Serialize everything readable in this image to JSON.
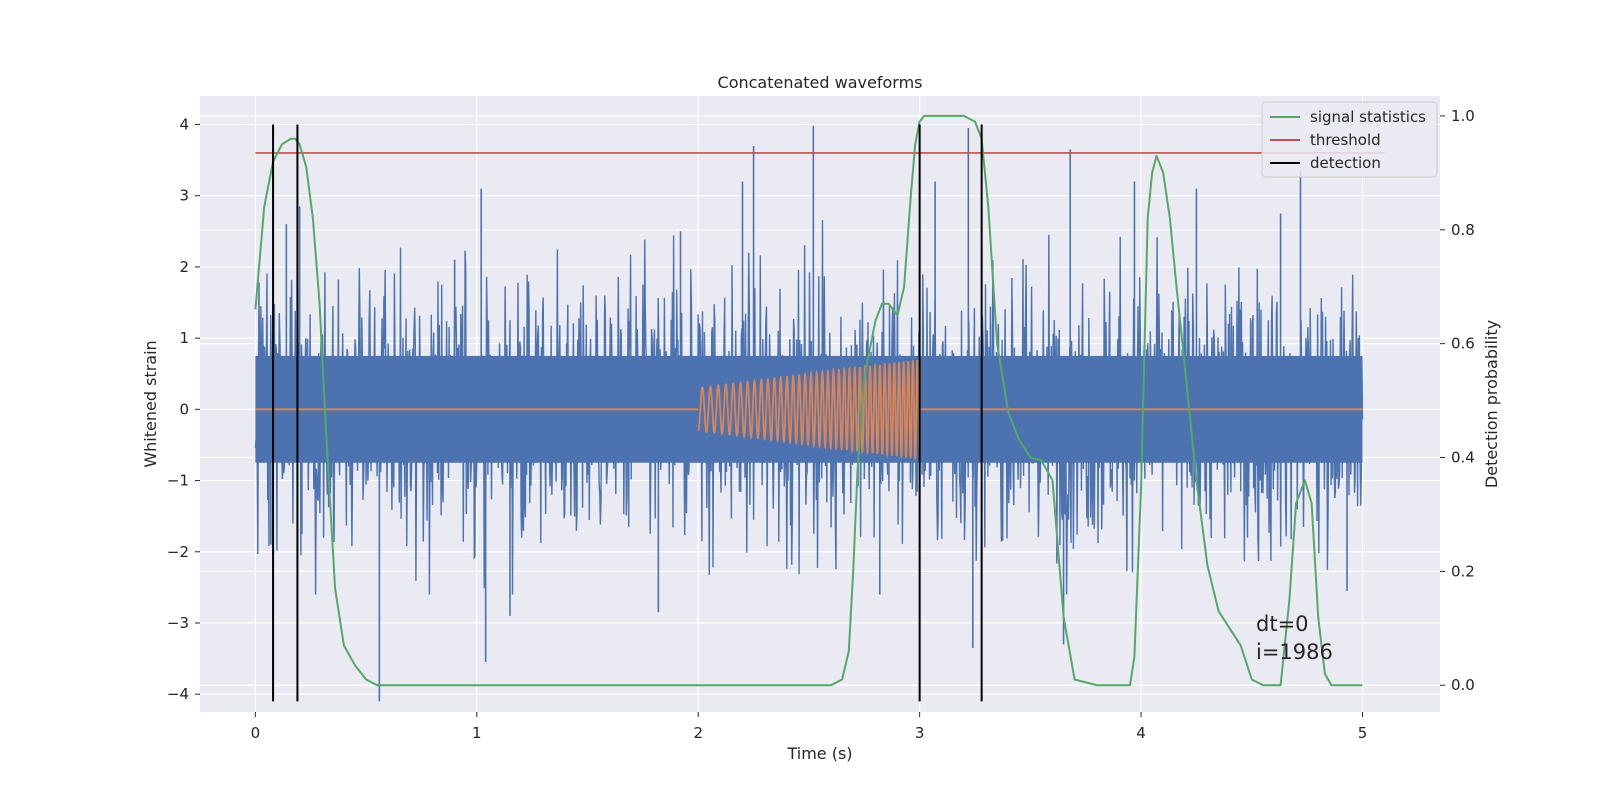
{
  "chart_data": {
    "type": "line",
    "title": "Concatenated waveforms",
    "xlabel": "Time (s)",
    "ylabel": "Whitened strain",
    "y2label": "Detection probability",
    "xlim": [
      -0.25,
      5.35
    ],
    "ylim": [
      -4.25,
      4.4
    ],
    "y2lim": [
      -0.047,
      1.035
    ],
    "xticks": [
      0,
      1,
      2,
      3,
      4,
      5
    ],
    "xtick_labels": [
      "0",
      "1",
      "2",
      "3",
      "4",
      "5"
    ],
    "yticks": [
      4,
      3,
      2,
      1,
      0,
      -1,
      -2,
      -3,
      -4
    ],
    "ytick_labels": [
      "4",
      "3",
      "2",
      "1",
      "0",
      "−1",
      "−2",
      "−3",
      "−4"
    ],
    "y2ticks": [
      1.0,
      0.8,
      0.6,
      0.4,
      0.2,
      0.0
    ],
    "y2tick_labels": [
      "1.0",
      "0.8",
      "0.6",
      "0.4",
      "0.2",
      "0.0"
    ],
    "grid": true,
    "legend_position": "top-right",
    "colors": {
      "background": "#eaeaf2",
      "grid": "#ffffff",
      "strain": "#4c72b0",
      "injection": "#dd8452",
      "statistics": "#55a868",
      "threshold": "#c44e52",
      "detection": "#000000"
    },
    "strain": {
      "x_range": [
        0,
        5
      ],
      "band_y": [
        -0.75,
        0.75
      ],
      "spike_extremes": [
        {
          "x": 0.07,
          "y": -1.9
        },
        {
          "x": 0.14,
          "y": 2.6
        },
        {
          "x": 0.2,
          "y": 2.85
        },
        {
          "x": 0.21,
          "y": -1.75
        },
        {
          "x": 0.56,
          "y": -4.1
        },
        {
          "x": 0.9,
          "y": 2.1
        },
        {
          "x": 1.02,
          "y": 3.1
        },
        {
          "x": 1.04,
          "y": -3.55
        },
        {
          "x": 1.15,
          "y": -2.9
        },
        {
          "x": 1.82,
          "y": -2.85
        },
        {
          "x": 1.92,
          "y": 2.5
        },
        {
          "x": 2.2,
          "y": 3.2
        },
        {
          "x": 2.25,
          "y": 3.7
        },
        {
          "x": 2.52,
          "y": 3.98
        },
        {
          "x": 2.82,
          "y": -2.6
        },
        {
          "x": 3.07,
          "y": 3.2
        },
        {
          "x": 3.22,
          "y": 3.95
        },
        {
          "x": 3.24,
          "y": -3.35
        },
        {
          "x": 3.65,
          "y": -3.3
        },
        {
          "x": 3.68,
          "y": 3.65
        },
        {
          "x": 3.97,
          "y": 3.2
        },
        {
          "x": 4.25,
          "y": 3.1
        },
        {
          "x": 4.63,
          "y": 2.75
        },
        {
          "x": 4.72,
          "y": 3.35
        },
        {
          "x": 4.93,
          "y": -2.55
        }
      ]
    },
    "injection": {
      "x_range": [
        0,
        5
      ],
      "chirp_start": 2.0,
      "chirp_end": 3.0,
      "amplitude_start": 0.3,
      "amplitude_end": 0.7,
      "cycles": 38
    },
    "signal_statistics": {
      "name": "signal statistics",
      "x": [
        0,
        0.04,
        0.08,
        0.12,
        0.16,
        0.18,
        0.2,
        0.23,
        0.26,
        0.29,
        0.32,
        0.36,
        0.4,
        0.45,
        0.5,
        0.55,
        0.6,
        1.0,
        2.0,
        2.6,
        2.65,
        2.68,
        2.7,
        2.72,
        2.75,
        2.8,
        2.83,
        2.86,
        2.88,
        2.9,
        2.93,
        2.96,
        2.98,
        3.0,
        3.02,
        3.05,
        3.1,
        3.2,
        3.25,
        3.28,
        3.31,
        3.35,
        3.4,
        3.45,
        3.5,
        3.55,
        3.6,
        3.65,
        3.7,
        3.8,
        3.9,
        3.95,
        3.97,
        4.0,
        4.03,
        4.05,
        4.07,
        4.1,
        4.13,
        4.16,
        4.2,
        4.25,
        4.3,
        4.35,
        4.4,
        4.45,
        4.5,
        4.55,
        4.6,
        4.63,
        4.67,
        4.7,
        4.74,
        4.77,
        4.8,
        4.83,
        4.86,
        4.9,
        5.0
      ],
      "y": [
        0.66,
        0.84,
        0.92,
        0.95,
        0.96,
        0.96,
        0.95,
        0.91,
        0.82,
        0.67,
        0.44,
        0.17,
        0.07,
        0.035,
        0.01,
        0.0,
        0.0,
        0.0,
        0.0,
        0.0,
        0.01,
        0.06,
        0.2,
        0.38,
        0.54,
        0.64,
        0.67,
        0.67,
        0.66,
        0.65,
        0.7,
        0.86,
        0.95,
        0.99,
        1.0,
        1.0,
        1.0,
        1.0,
        0.99,
        0.96,
        0.84,
        0.6,
        0.48,
        0.43,
        0.4,
        0.395,
        0.36,
        0.12,
        0.01,
        0.0,
        0.0,
        0.0,
        0.05,
        0.35,
        0.82,
        0.9,
        0.93,
        0.9,
        0.82,
        0.7,
        0.55,
        0.36,
        0.21,
        0.13,
        0.1,
        0.07,
        0.01,
        0.0,
        0.0,
        0.0,
        0.15,
        0.32,
        0.36,
        0.32,
        0.12,
        0.02,
        0.0,
        0.0,
        0.0
      ]
    },
    "threshold": {
      "name": "threshold",
      "y": 3.6,
      "x_range": [
        0,
        5.1
      ]
    },
    "detections": {
      "name": "detection",
      "x": [
        0.08,
        0.19,
        3.0,
        3.28
      ],
      "y_range": [
        -4.1,
        4.0
      ]
    },
    "annotations": [
      {
        "text": "dt=0"
      },
      {
        "text": "i=1986"
      }
    ]
  }
}
